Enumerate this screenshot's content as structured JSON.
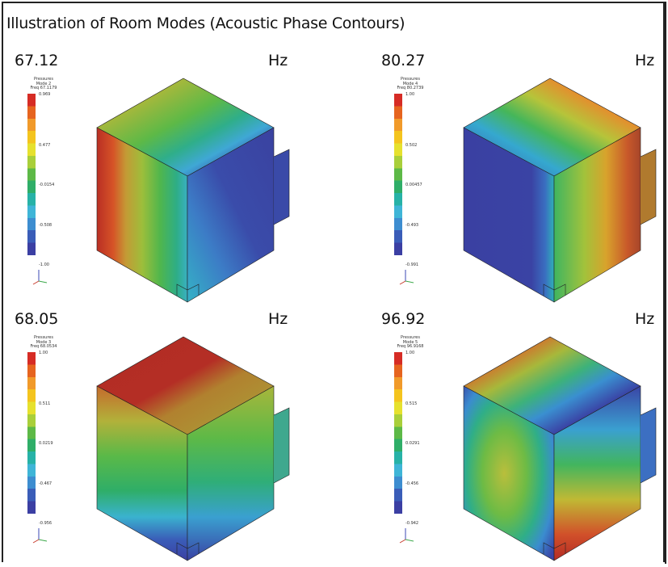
{
  "title": "Illustration of Room Modes (Acoustic Phase Contours)",
  "legend_colors": [
    "#D62C25",
    "#E6641F",
    "#F19A2A",
    "#F4C41E",
    "#E6E12E",
    "#A9CF3A",
    "#5DB947",
    "#2FAE68",
    "#27B2A7",
    "#3FB5D7",
    "#3D8DD0",
    "#3A5DB8",
    "#3B3FA3"
  ],
  "panels": [
    {
      "freq": "67.12",
      "unit": "Hz",
      "caption": [
        "Pressures",
        "Mode 2",
        "Freq 67.1179"
      ],
      "ticks": [
        "0.969",
        "0.477",
        "-0.0154",
        "-0.508",
        "-1.00"
      ]
    },
    {
      "freq": "80.27",
      "unit": "Hz",
      "caption": [
        "Pressures",
        "Mode 4",
        "Freq 80.2739"
      ],
      "ticks": [
        "1.00",
        "0.502",
        "0.00457",
        "-0.493",
        "-0.991"
      ]
    },
    {
      "freq": "68.05",
      "unit": "Hz",
      "caption": [
        "Pressures",
        "Mode 3",
        "Freq 68.0534"
      ],
      "ticks": [
        "1.00",
        "0.511",
        "0.0219",
        "-0.467",
        "-0.956"
      ]
    },
    {
      "freq": "96.92",
      "unit": "Hz",
      "caption": [
        "Pressures",
        "Mode 5",
        "Freq 96.9168"
      ],
      "ticks": [
        "1.00",
        "0.515",
        "0.0291",
        "-0.456",
        "-0.942"
      ]
    }
  ]
}
